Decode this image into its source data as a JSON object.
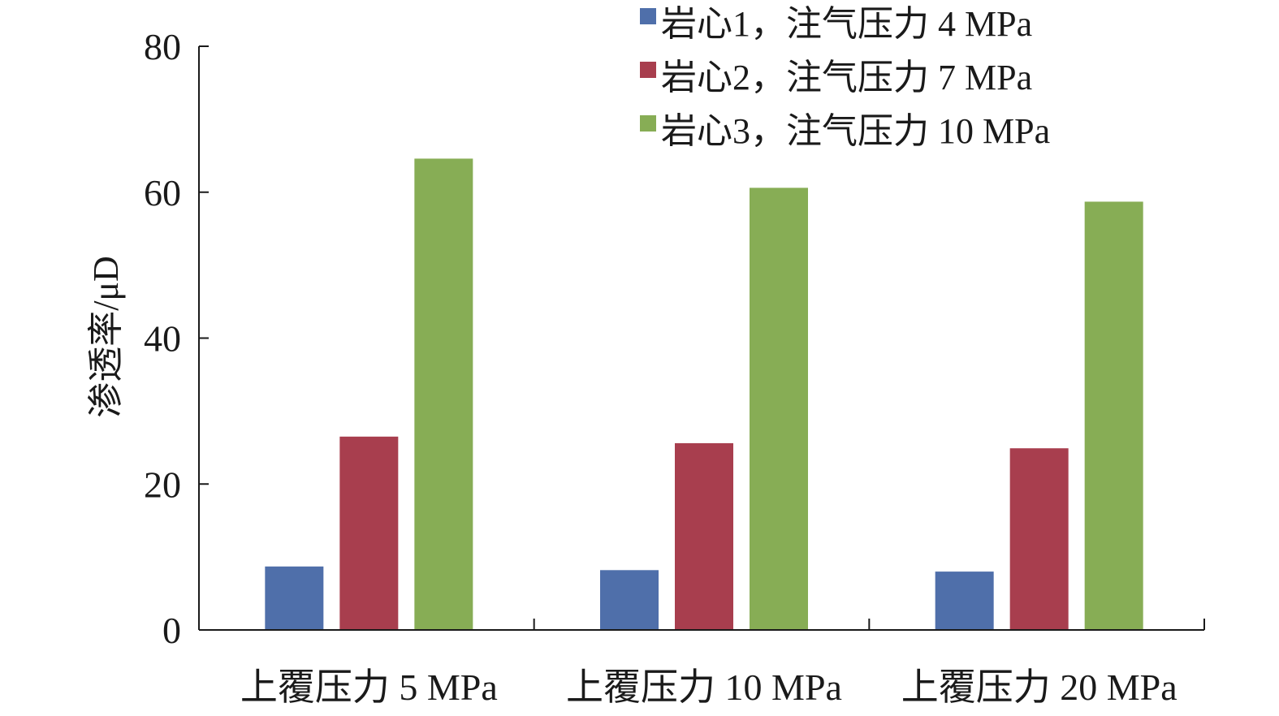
{
  "chart_data": {
    "type": "bar",
    "title": "",
    "xlabel": "",
    "ylabel": "渗透率/μD",
    "ylim": [
      0,
      80
    ],
    "yticks": [
      0,
      20,
      40,
      60,
      80
    ],
    "categories": [
      "上覆压力 5 MPa",
      "上覆压力 10 MPa",
      "上覆压力 20 MPa"
    ],
    "series": [
      {
        "name": "岩心1，注气压力 4 MPa",
        "color": "#4F6FAA",
        "values": [
          8.7,
          8.2,
          8.0
        ]
      },
      {
        "name": "岩心2，注气压力 7 MPa",
        "color": "#A83E4E",
        "values": [
          26.5,
          25.6,
          24.9
        ]
      },
      {
        "name": "岩心3，注气压力 10 MPa",
        "color": "#87AD55",
        "values": [
          64.6,
          60.6,
          58.7
        ]
      }
    ],
    "legend_position": "top-right",
    "grid": false
  }
}
